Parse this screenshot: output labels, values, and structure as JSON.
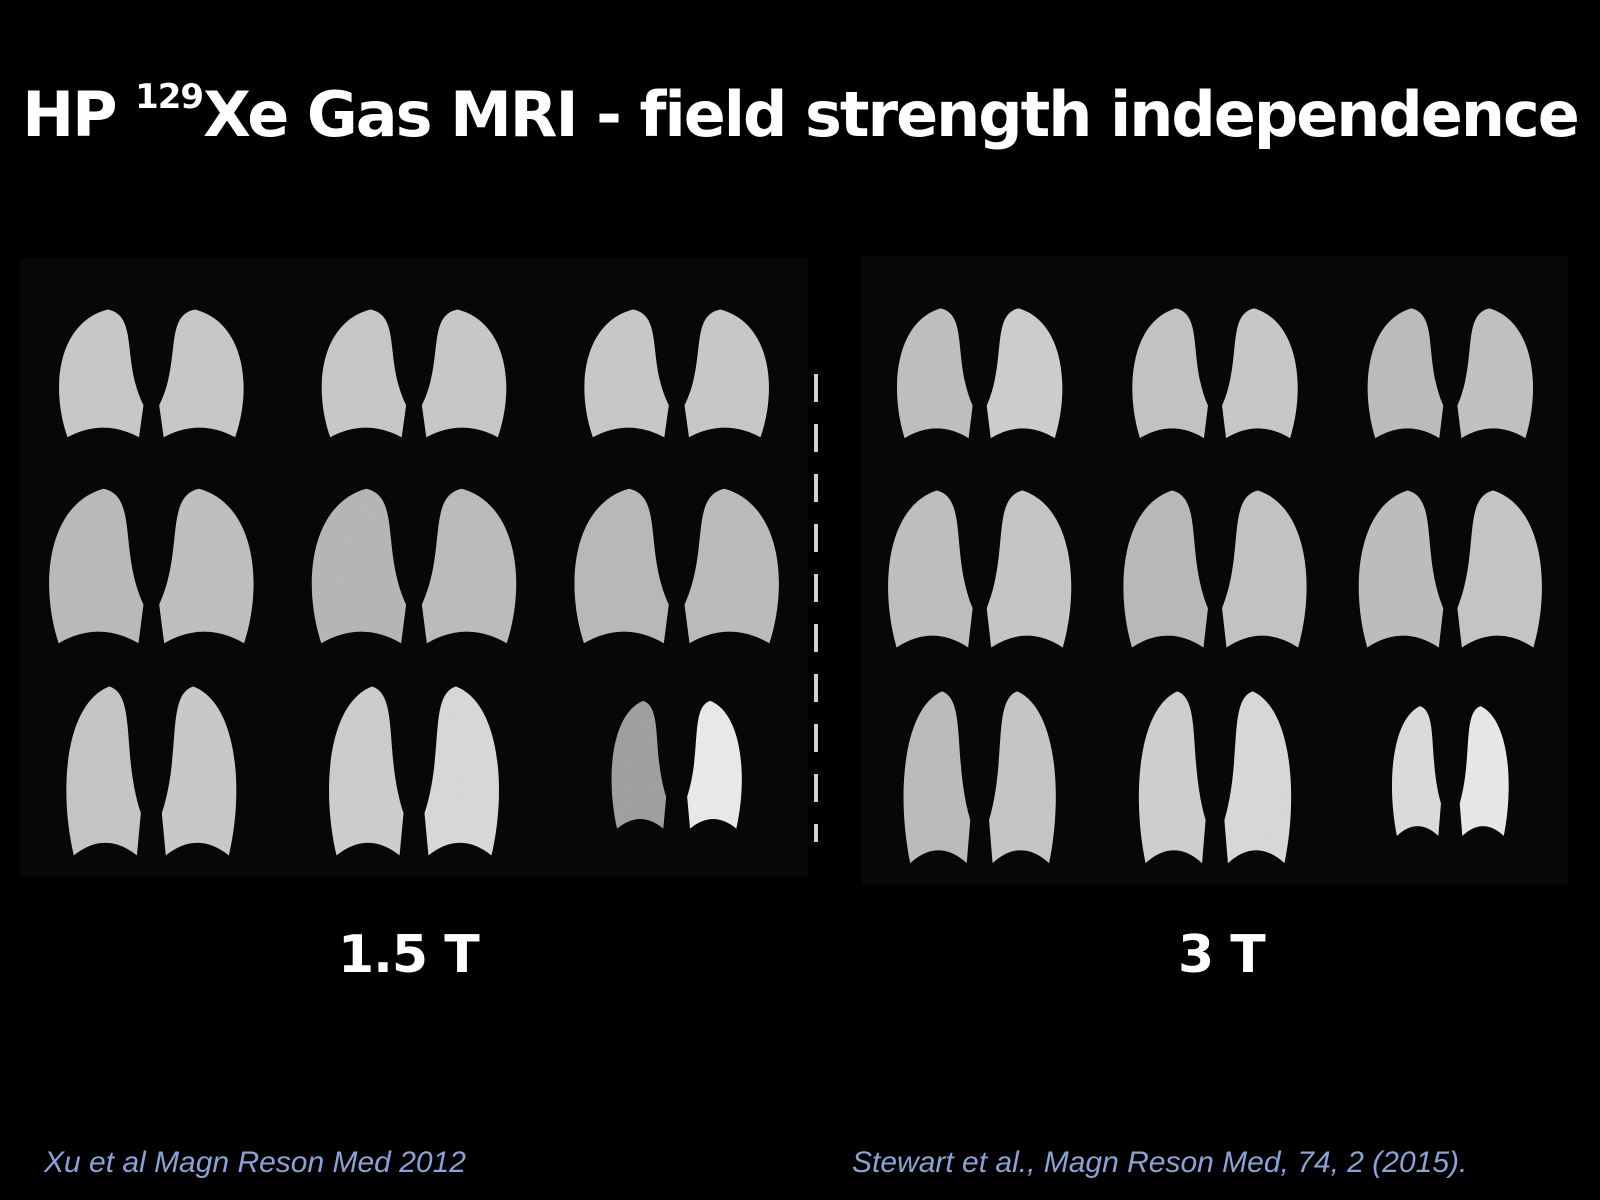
{
  "slide": {
    "title_prefix": "HP ",
    "title_superscript": "129",
    "title_suffix": "Xe Gas MRI - field strength independence"
  },
  "panels": [
    {
      "field_label": "1.5 T",
      "citation": "Xu et al Magn Reson Med 2012",
      "image": "lung-mri-montage-icon",
      "rows": 3,
      "cols": 3
    },
    {
      "field_label": "3 T",
      "citation": "Stewart et al., Magn Reson Med, 74, 2 (2015).",
      "image": "lung-mri-montage-icon",
      "rows": 3,
      "cols": 3
    }
  ],
  "colors": {
    "background": "#000000",
    "text": "#ffffff",
    "citation": "#8aa3d6",
    "lung_signal": "#c8c8c8"
  }
}
